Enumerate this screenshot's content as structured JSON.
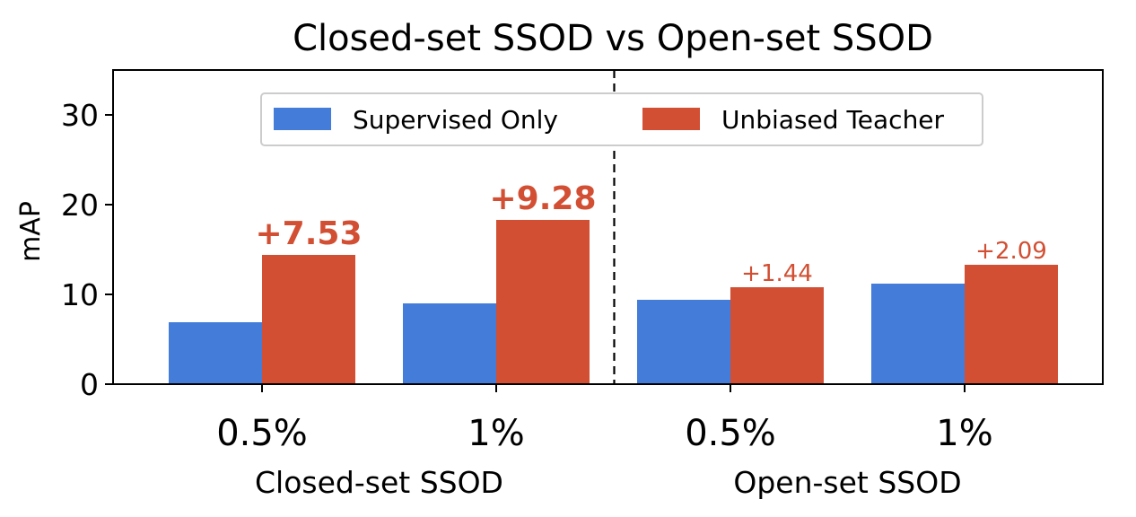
{
  "chart_data": {
    "type": "bar",
    "title": "Closed-set SSOD vs Open-set SSOD",
    "ylabel": "mAP",
    "ylim": [
      0,
      35
    ],
    "yticks": [
      0,
      10,
      20,
      30
    ],
    "categories": [
      "0.5%",
      "1%",
      "0.5%",
      "1%"
    ],
    "groups": [
      {
        "label": "Closed-set SSOD",
        "categories": [
          0,
          1
        ]
      },
      {
        "label": "Open-set SSOD",
        "categories": [
          2,
          3
        ]
      }
    ],
    "series": [
      {
        "name": "Supervised Only",
        "color": "#447cd9",
        "values": [
          6.9,
          9.0,
          9.4,
          11.2
        ]
      },
      {
        "name": "Unbiased Teacher",
        "color": "#d24f33",
        "values": [
          14.4,
          18.3,
          10.8,
          13.3
        ]
      }
    ],
    "annotations": [
      "+7.53",
      "+9.28",
      "+1.44",
      "+2.09"
    ],
    "annotation_color": "#d24f33",
    "legend_position": "upper center",
    "divider": "dashed vertical line between the two groups",
    "grid": false
  }
}
